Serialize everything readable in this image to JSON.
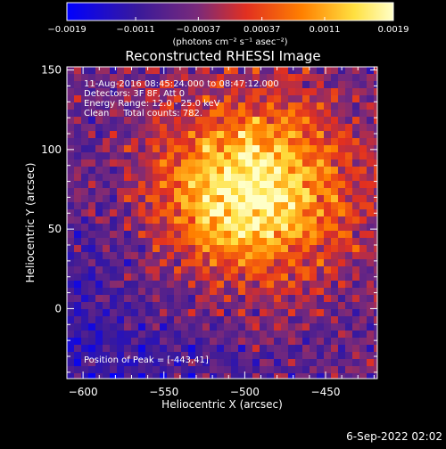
{
  "chart_data": {
    "type": "heatmap",
    "title": "Reconstructed RHESSI Image",
    "xlabel": "Heliocentric X (arcsec)",
    "ylabel": "Heliocentric Y (arcsec)",
    "xlim": [
      -610,
      -418
    ],
    "ylim": [
      -44,
      152
    ],
    "x_ticks": [
      -600,
      -550,
      -500,
      -450
    ],
    "y_ticks": [
      0,
      50,
      100,
      150
    ],
    "x_tick_labels": [
      "−600",
      "−550",
      "−500",
      "−450"
    ],
    "y_tick_labels": [
      "0",
      "50",
      "100",
      "150"
    ],
    "colorbar": {
      "min": -0.0019,
      "max": 0.0019,
      "ticks": [
        -0.0019,
        -0.0011,
        -0.00037,
        0.00037,
        0.0011,
        0.0019
      ],
      "tick_labels": [
        "−0.0019",
        "−0.0011",
        "−0.00037",
        "0.00037",
        "0.0011",
        "0.0019"
      ],
      "unit_label": "(photons cm⁻² s⁻¹ asec⁻²)",
      "colors": [
        "#0000ff",
        "#3a1a9a",
        "#7a2a7a",
        "#e23020",
        "#ff8000",
        "#ffe040",
        "#ffffc8"
      ]
    },
    "annotations": [
      "11-Aug-2016 08:45:24.000 to 08:47:12.000",
      "Detectors: 3F 8F, Att 0",
      "Energy Range: 12.0 - 25.0 keV",
      "Clean     Total counts: 782."
    ],
    "peak_label": "Position of Peak = [-443,41]",
    "peak": {
      "x": -443,
      "y": 41
    },
    "source_center": {
      "x": -500,
      "y": 75
    }
  },
  "footer": {
    "date": "6-Sep-2022 02:02"
  }
}
